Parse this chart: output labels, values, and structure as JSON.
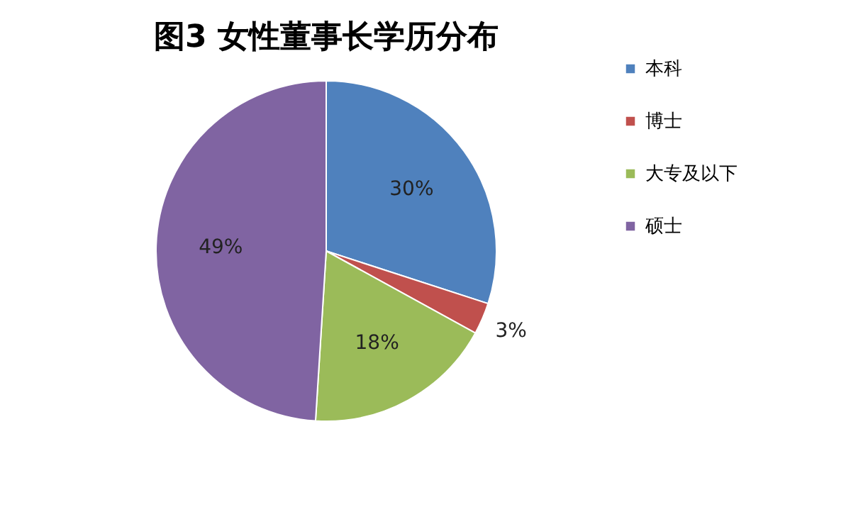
{
  "chart_data": {
    "type": "pie",
    "title": "图3  女性董事长学历分布",
    "categories": [
      "本科",
      "博士",
      "大专及以下",
      "硕士"
    ],
    "values": [
      30,
      3,
      18,
      49
    ],
    "colors": [
      "#4f81bd",
      "#c0504d",
      "#9bbb59",
      "#8064a2"
    ],
    "value_labels": [
      "30%",
      "3%",
      "18%",
      "49%"
    ],
    "legend": "right"
  }
}
